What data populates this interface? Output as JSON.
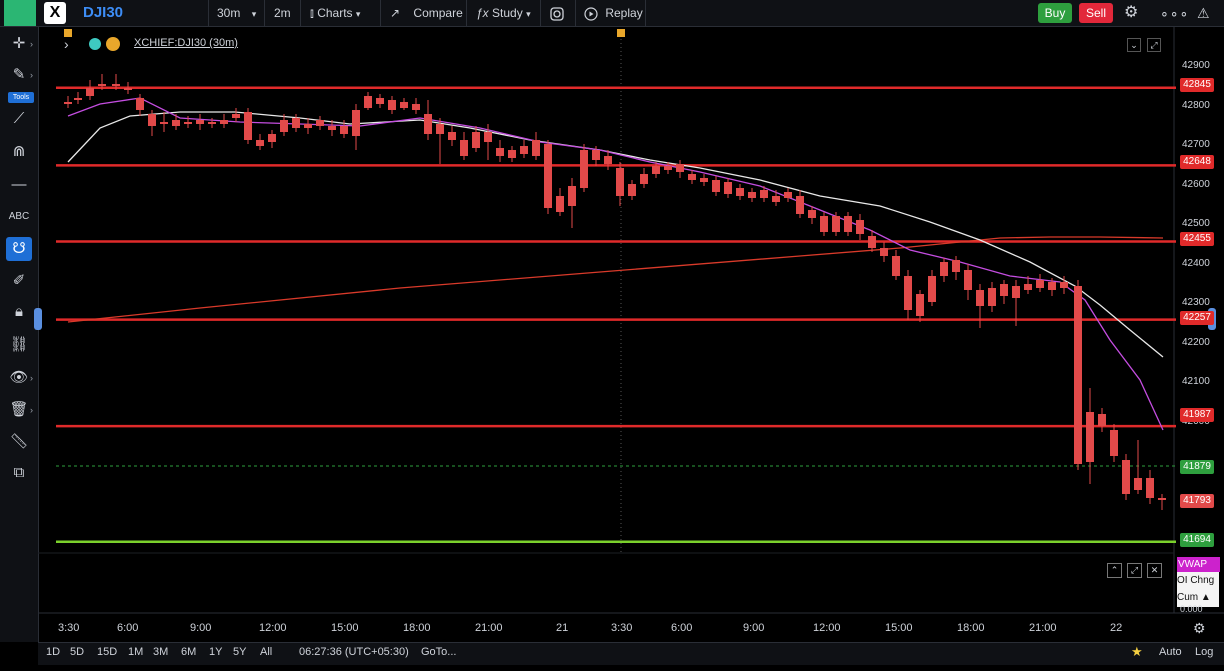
{
  "header": {
    "symbol": "DJI30",
    "interval": "30m",
    "interval2": "2m",
    "charts_label": "Charts",
    "compare_label": "Compare",
    "study_label": "Study",
    "replay_label": "Replay",
    "buy_label": "Buy",
    "sell_label": "Sell"
  },
  "left_toolbar": {
    "tools_label": "Tools"
  },
  "legend": {
    "symbol_full": "XCHIEF:DJI30 (30m)"
  },
  "price_axis": {
    "ticks": [
      "42900",
      "42800",
      "42700",
      "42600",
      "42500",
      "42400",
      "42300",
      "42200",
      "42100",
      "42000"
    ],
    "h_levels": [
      {
        "label": "42845",
        "price": 42845,
        "color": "#e02a2a"
      },
      {
        "label": "42648",
        "price": 42648,
        "color": "#e02a2a"
      },
      {
        "label": "42455",
        "price": 42455,
        "color": "#e02a2a"
      },
      {
        "label": "42257",
        "price": 42257,
        "color": "#e02a2a"
      },
      {
        "label": "41987",
        "price": 41987,
        "color": "#e02a2a"
      },
      {
        "label": "41694",
        "price": 41694,
        "color": "#7bd12c"
      }
    ],
    "last_green": "41879",
    "last_red": "41793"
  },
  "time_axis": {
    "labels": [
      "3:30",
      "6:00",
      "9:00",
      "12:00",
      "15:00",
      "18:00",
      "21:00",
      "21",
      "3:30",
      "6:00",
      "9:00",
      "12:00",
      "15:00",
      "18:00",
      "21:00",
      "22"
    ]
  },
  "indicator_panel": {
    "vwap": "VWAP",
    "oi": "OI Chng",
    "cum": "Cum ▲",
    "zero": "0.000"
  },
  "bottom_bar": {
    "ranges": [
      "1D",
      "5D",
      "15D",
      "1M",
      "3M",
      "6M",
      "1Y",
      "5Y",
      "All"
    ],
    "clock": "06:27:36 (UTC+05:30)",
    "goto": "GoTo...",
    "auto": "Auto",
    "log": "Log"
  },
  "colors": {
    "up": "#2e9f3e",
    "down": "#e24a4a",
    "ma_white": "#e8e8e8",
    "ma_purple": "#c44de0",
    "ma_red": "#d93a2a"
  }
}
